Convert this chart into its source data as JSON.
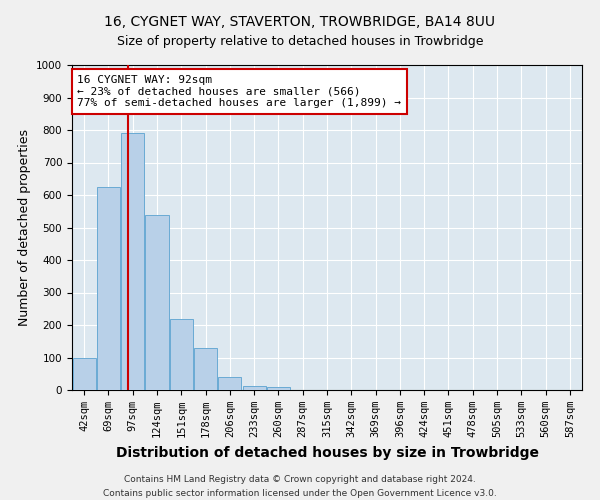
{
  "title": "16, CYGNET WAY, STAVERTON, TROWBRIDGE, BA14 8UU",
  "subtitle": "Size of property relative to detached houses in Trowbridge",
  "xlabel": "Distribution of detached houses by size in Trowbridge",
  "ylabel": "Number of detached properties",
  "bar_color": "#b8d0e8",
  "bar_edge_color": "#6aaad4",
  "background_color": "#dde8f0",
  "fig_background_color": "#f0f0f0",
  "categories": [
    "42sqm",
    "69sqm",
    "97sqm",
    "124sqm",
    "151sqm",
    "178sqm",
    "206sqm",
    "233sqm",
    "260sqm",
    "287sqm",
    "315sqm",
    "342sqm",
    "369sqm",
    "396sqm",
    "424sqm",
    "451sqm",
    "478sqm",
    "505sqm",
    "533sqm",
    "560sqm",
    "587sqm"
  ],
  "values": [
    100,
    625,
    790,
    540,
    220,
    130,
    40,
    12,
    8,
    0,
    0,
    0,
    0,
    0,
    0,
    0,
    0,
    0,
    0,
    0,
    0
  ],
  "ylim": [
    0,
    1000
  ],
  "yticks": [
    0,
    100,
    200,
    300,
    400,
    500,
    600,
    700,
    800,
    900,
    1000
  ],
  "property_label": "16 CYGNET WAY: 92sqm",
  "annotation_line1": "← 23% of detached houses are smaller (566)",
  "annotation_line2": "77% of semi-detached houses are larger (1,899) →",
  "vline_color": "#cc0000",
  "annotation_box_edge_color": "#cc0000",
  "footer_line1": "Contains HM Land Registry data © Crown copyright and database right 2024.",
  "footer_line2": "Contains public sector information licensed under the Open Government Licence v3.0.",
  "grid_color": "#ffffff",
  "title_fontsize": 10,
  "axis_label_fontsize": 9,
  "tick_fontsize": 7.5,
  "annotation_fontsize": 8,
  "footer_fontsize": 6.5,
  "vline_x_index": 1.82
}
